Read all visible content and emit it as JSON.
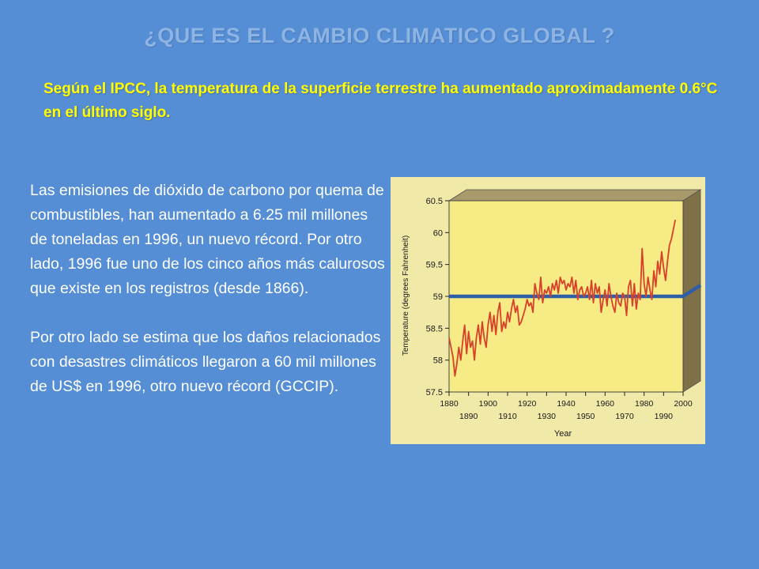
{
  "slide": {
    "title": "¿QUE ES EL CAMBIO CLIMATICO GLOBAL ?",
    "subtitle": "Según el IPCC, la temperatura de la superficie terrestre ha aumentado aproximadamente 0.6°C en el último siglo.",
    "paragraphs": [
      "Las emisiones de dióxido de carbono por quema de combustibles, han aumentado a 6.25 mil millones de toneladas en 1996, un nuevo récord. Por otro lado, 1996 fue uno de los cinco años más calurosos que existe en los registros (desde 1866).",
      "Por otro lado se estima que los daños relacionados con desastres climáticos llegaron a 60 mil millones de US$ en 1996, otro nuevo récord (GCCIP)."
    ]
  },
  "colors": {
    "background": "#558ED5",
    "title": "#8DB4E2",
    "subtitle": "#FFFF00",
    "body_text": "#FFFFFF",
    "figure_frame": "#F1E9A8",
    "plot_background": "#F7EB86",
    "wall": "#7F7048",
    "temperature_line": "#D8402A",
    "reference_line": "#2E5EA8"
  },
  "chart_data": {
    "type": "line",
    "xlabel": "Year",
    "ylabel": "Temperature (degrees Fahrenheit)",
    "xlim": [
      1880,
      2000
    ],
    "ylim": [
      57.5,
      60.5
    ],
    "x_ticks_row1": [
      "1880",
      "1900",
      "1920",
      "1940",
      "1960",
      "1980",
      "2000"
    ],
    "x_ticks_row2": [
      "1890",
      "1910",
      "1930",
      "1950",
      "1970",
      "1990"
    ],
    "y_ticks": [
      "57.5",
      "58",
      "58.5",
      "59",
      "59.5",
      "60",
      "60.5"
    ],
    "reference_line": 59.0,
    "series": [
      {
        "x": [
          1880,
          1881,
          1882,
          1883,
          1884,
          1885,
          1886,
          1887,
          1888,
          1889,
          1890,
          1891,
          1892,
          1893,
          1894,
          1895,
          1896,
          1897,
          1898,
          1899,
          1900,
          1901,
          1902,
          1903,
          1904,
          1905,
          1906,
          1907,
          1908,
          1909,
          1910,
          1911,
          1912,
          1913,
          1914,
          1915,
          1916,
          1917,
          1918,
          1919,
          1920,
          1921,
          1922,
          1923,
          1924,
          1925,
          1926,
          1927,
          1928,
          1929,
          1930,
          1931,
          1932,
          1933,
          1934,
          1935,
          1936,
          1937,
          1938,
          1939,
          1940,
          1941,
          1942,
          1943,
          1944,
          1945,
          1946,
          1947,
          1948,
          1949,
          1950,
          1951,
          1952,
          1953,
          1954,
          1955,
          1956,
          1957,
          1958,
          1959,
          1960,
          1961,
          1962,
          1963,
          1964,
          1965,
          1966,
          1967,
          1968,
          1969,
          1970,
          1971,
          1972,
          1973,
          1974,
          1975,
          1976,
          1977,
          1978,
          1979,
          1980,
          1981,
          1982,
          1983,
          1984,
          1985,
          1986,
          1987,
          1988,
          1989,
          1990,
          1991,
          1992,
          1993,
          1994,
          1995,
          1996
        ],
        "values": [
          58.35,
          58.2,
          58.05,
          57.75,
          57.95,
          58.2,
          58.0,
          58.3,
          58.55,
          58.1,
          58.45,
          58.2,
          58.3,
          58.0,
          58.35,
          58.55,
          58.25,
          58.6,
          58.35,
          58.2,
          58.55,
          58.75,
          58.45,
          58.7,
          58.4,
          58.75,
          58.9,
          58.45,
          58.6,
          58.5,
          58.75,
          58.6,
          58.8,
          58.95,
          58.75,
          58.85,
          58.55,
          58.6,
          58.7,
          58.8,
          58.95,
          58.85,
          58.9,
          58.75,
          59.2,
          59.05,
          58.95,
          59.3,
          58.9,
          59.1,
          59.05,
          59.15,
          59.0,
          59.2,
          59.1,
          59.25,
          59.05,
          59.3,
          59.2,
          59.25,
          59.1,
          59.2,
          59.15,
          59.3,
          59.05,
          59.25,
          58.95,
          59.1,
          59.15,
          59.0,
          59.05,
          59.15,
          58.95,
          59.25,
          58.9,
          59.2,
          59.05,
          59.15,
          58.75,
          58.95,
          59.1,
          58.85,
          59.2,
          59.0,
          58.85,
          58.75,
          59.05,
          58.9,
          58.85,
          59.05,
          59.0,
          58.7,
          59.15,
          59.25,
          58.85,
          59.2,
          58.8,
          59.05,
          58.95,
          59.75,
          59.2,
          59.0,
          59.3,
          59.1,
          58.95,
          59.4,
          59.15,
          59.55,
          59.35,
          59.7,
          59.45,
          59.25,
          59.55,
          59.8,
          59.9,
          60.05,
          60.2
        ]
      }
    ]
  }
}
